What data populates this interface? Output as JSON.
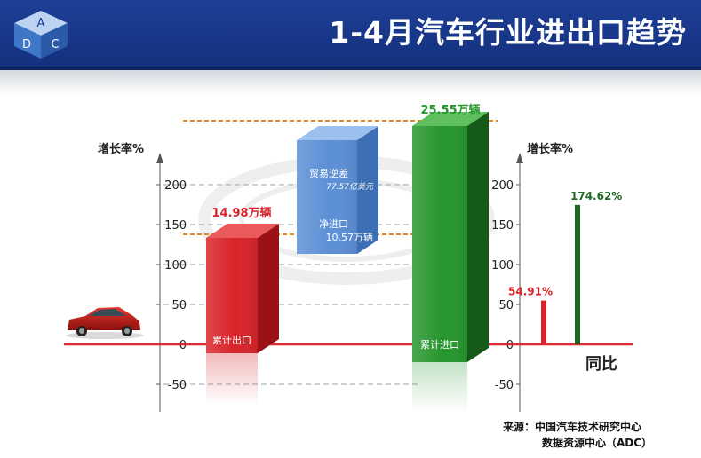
{
  "header": {
    "title": "1-4月汽车行业进出口趋势",
    "logo_text": [
      "A",
      "D",
      "C"
    ]
  },
  "chart_data": {
    "type": "bar",
    "ylabel": "增长率%",
    "left_axis": {
      "ticks": [
        200,
        150,
        100,
        50,
        0,
        -50
      ]
    },
    "right_axis": {
      "ticks": [
        200,
        150,
        100,
        50,
        0,
        -50
      ]
    },
    "bars": [
      {
        "name": "累计出口",
        "value": 14.98,
        "value_label": "14.98万辆",
        "color": "#d8242a"
      },
      {
        "name": "累计进口",
        "value": 25.55,
        "value_label": "25.55万辆",
        "color": "#27962e"
      }
    ],
    "floating_box": {
      "top_label": "贸易逆差",
      "top_value": "77.57亿美元",
      "bottom_label": "净进口",
      "bottom_value": "10.57万辆",
      "color": "#5c8fd6"
    },
    "growth": {
      "category_label": "同比",
      "series": [
        {
          "name": "累计出口",
          "value": 54.91,
          "label": "54.91%",
          "color": "#d8242a"
        },
        {
          "name": "累计进口",
          "value": 174.62,
          "label": "174.62%",
          "color": "#1e6a24"
        }
      ]
    },
    "baseline_color": "#e0292d",
    "guide_color": "#e08a1a"
  },
  "source": {
    "line1": "来源：中国汽车技术研究中心",
    "line2": "数据资源中心（ADC）"
  }
}
